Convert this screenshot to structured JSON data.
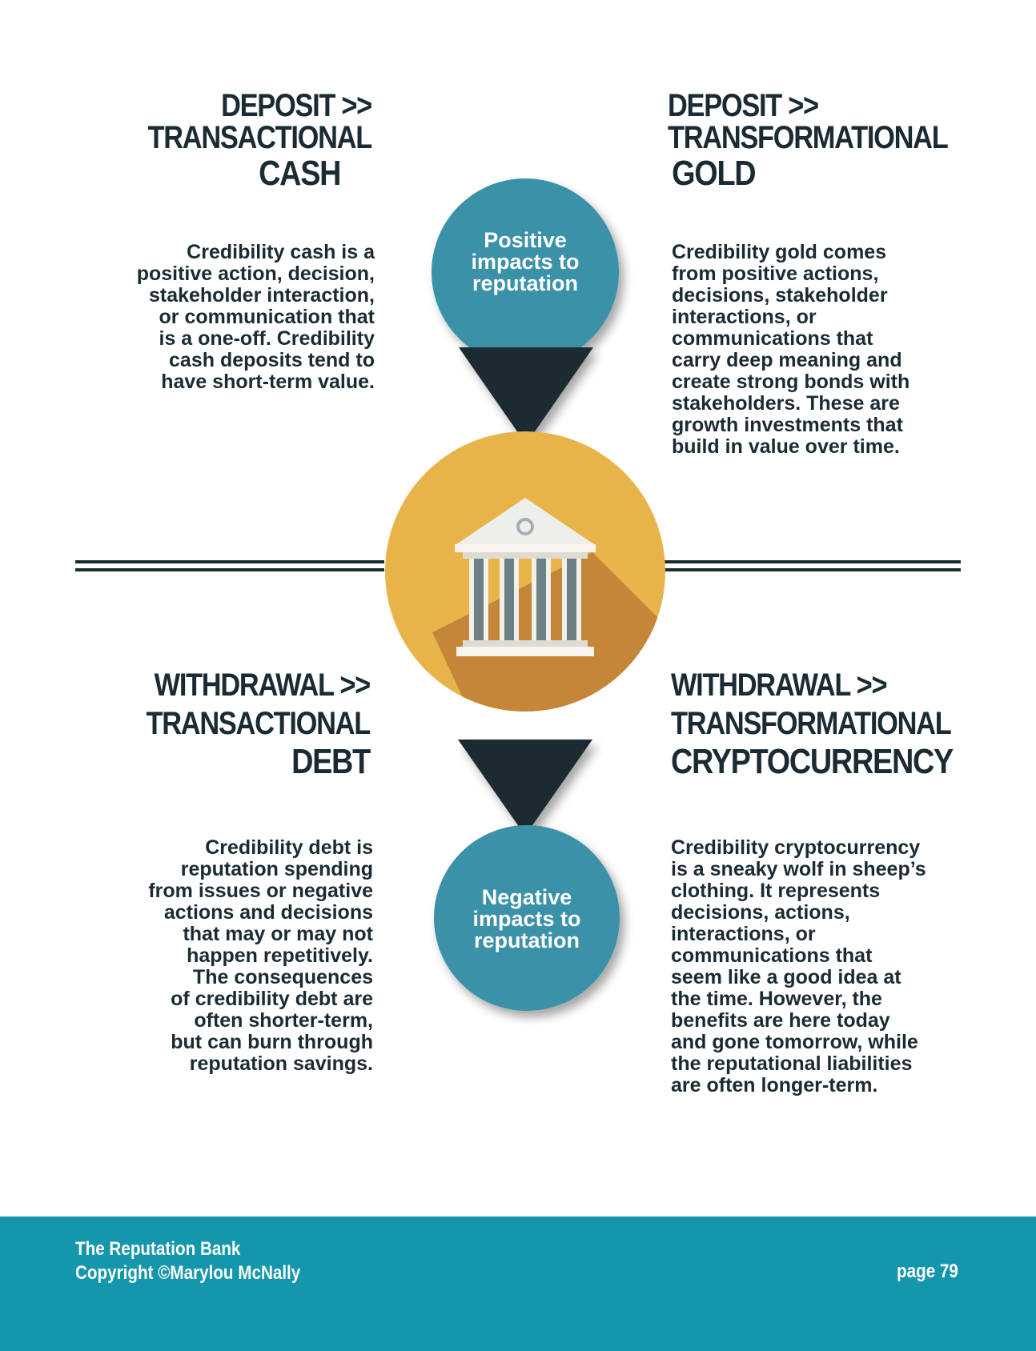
{
  "quadrants": {
    "deposit_cash": {
      "line1": "DEPOSIT >>",
      "line2": "TRANSACTIONAL",
      "line3": "CASH",
      "body": [
        "Credibility cash is a",
        "positive action, decision,",
        "stakeholder interaction,",
        "or communication that",
        "is a one-off. Credibility",
        "cash deposits tend to",
        "have short-term value."
      ]
    },
    "deposit_gold": {
      "line1": "DEPOSIT >>",
      "line2": "TRANSFORMATIONAL",
      "line3": "GOLD",
      "body": [
        "Credibility gold comes",
        "from positive actions,",
        "decisions, stakeholder",
        "interactions, or",
        "communications that",
        "carry deep meaning and",
        "create strong bonds with",
        "stakeholders. These are",
        "growth investments that",
        "build in value over time."
      ]
    },
    "withdrawal_debt": {
      "line1": "WITHDRAWAL >>",
      "line2": "TRANSACTIONAL",
      "line3": "DEBT",
      "body": [
        "Credibility debt is",
        "reputation spending",
        "from issues or negative",
        "actions and decisions",
        "that may or may not",
        "happen repetitively.",
        "The consequences",
        "of credibility debt are",
        "often shorter-term,",
        "but can burn through",
        "reputation savings."
      ]
    },
    "withdrawal_crypto": {
      "line1": "WITHDRAWAL >>",
      "line2": "TRANSFORMATIONAL",
      "line3": "CRYPTOCURRENCY",
      "body": [
        "Credibility cryptocurrency",
        "is a sneaky wolf in sheep’s",
        "clothing. It represents",
        "decisions, actions,",
        "interactions, or",
        "communications that",
        "seem like a good idea at",
        "the time. However, the",
        "benefits are here today",
        "and gone tomorrow, while",
        "the reputational liabilities",
        "are often longer-term."
      ]
    }
  },
  "bubbles": {
    "positive": [
      "Positive",
      "impacts to",
      "reputation"
    ],
    "negative": [
      "Negative",
      "impacts to",
      "reputation"
    ]
  },
  "center_icon": "bank-building-icon",
  "footer": {
    "title": "The Reputation Bank",
    "copyright": "Copyright ©Marylou McNally",
    "page": "page 79"
  },
  "colors": {
    "teal_bubble": "#3a91a8",
    "dark_navy": "#1b2b33",
    "gold": "#e8b44a",
    "gold_shadow": "#c5863a",
    "footer_bg": "#1496ac"
  }
}
